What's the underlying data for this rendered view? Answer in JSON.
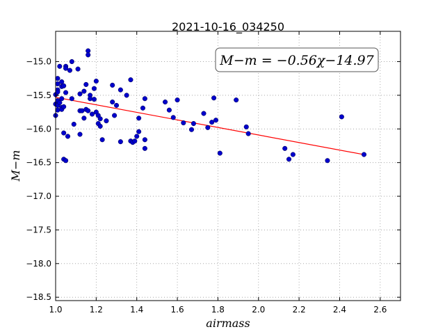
{
  "chart_data": {
    "type": "scatter",
    "title": "2021-10-16_034250",
    "xlabel": "airmass",
    "ylabel": "M−m",
    "xlim": [
      1.0,
      2.7
    ],
    "ylim": [
      -18.55,
      -14.55
    ],
    "x_ticks": [
      1.0,
      1.2,
      1.4,
      1.6,
      1.8,
      2.0,
      2.2,
      2.4,
      2.6
    ],
    "x_tick_labels": [
      "1.0",
      "1.2",
      "1.4",
      "1.6",
      "1.8",
      "2.0",
      "2.2",
      "2.4",
      "2.6"
    ],
    "y_ticks": [
      -15.0,
      -15.5,
      -16.0,
      -16.5,
      -17.0,
      -17.5,
      -18.0,
      -18.5
    ],
    "y_tick_labels": [
      "−15.0",
      "−15.5",
      "−16.0",
      "−16.5",
      "−17.0",
      "−17.5",
      "−18.0",
      "−18.5"
    ],
    "grid": true,
    "annotation": "M−m = −0.56χ−14.97",
    "marker_color": "#0000cc",
    "fit_color": "#ff0000",
    "fit_line": {
      "slope": -0.56,
      "intercept": -14.97,
      "x_range": [
        1.0,
        2.52
      ]
    },
    "points": [
      [
        1.0,
        -15.49
      ],
      [
        1.0,
        -15.63
      ],
      [
        1.0,
        -15.8
      ],
      [
        1.01,
        -15.25
      ],
      [
        1.01,
        -15.33
      ],
      [
        1.01,
        -15.42
      ],
      [
        1.01,
        -15.45
      ],
      [
        1.01,
        -15.58
      ],
      [
        1.01,
        -15.65
      ],
      [
        1.01,
        -15.72
      ],
      [
        1.02,
        -15.07
      ],
      [
        1.02,
        -15.61
      ],
      [
        1.03,
        -15.3
      ],
      [
        1.03,
        -15.37
      ],
      [
        1.03,
        -15.55
      ],
      [
        1.03,
        -15.68
      ],
      [
        1.03,
        -15.71
      ],
      [
        1.04,
        -15.36
      ],
      [
        1.04,
        -15.67
      ],
      [
        1.04,
        -16.06
      ],
      [
        1.04,
        -16.45
      ],
      [
        1.05,
        -15.07
      ],
      [
        1.05,
        -15.1
      ],
      [
        1.05,
        -15.46
      ],
      [
        1.05,
        -16.47
      ],
      [
        1.06,
        -16.11
      ],
      [
        1.07,
        -15.13
      ],
      [
        1.08,
        -15.0
      ],
      [
        1.08,
        -15.55
      ],
      [
        1.09,
        -15.93
      ],
      [
        1.11,
        -15.11
      ],
      [
        1.12,
        -15.73
      ],
      [
        1.12,
        -15.48
      ],
      [
        1.12,
        -16.08
      ],
      [
        1.13,
        -15.73
      ],
      [
        1.14,
        -15.44
      ],
      [
        1.14,
        -15.84
      ],
      [
        1.15,
        -15.71
      ],
      [
        1.15,
        -15.34
      ],
      [
        1.16,
        -14.84
      ],
      [
        1.16,
        -14.9
      ],
      [
        1.16,
        -15.73
      ],
      [
        1.17,
        -15.5
      ],
      [
        1.17,
        -15.55
      ],
      [
        1.18,
        -15.78
      ],
      [
        1.19,
        -15.4
      ],
      [
        1.19,
        -15.56
      ],
      [
        1.2,
        -15.75
      ],
      [
        1.2,
        -15.29
      ],
      [
        1.21,
        -15.92
      ],
      [
        1.21,
        -15.8
      ],
      [
        1.22,
        -15.85
      ],
      [
        1.22,
        -15.96
      ],
      [
        1.23,
        -16.16
      ],
      [
        1.25,
        -15.88
      ],
      [
        1.28,
        -15.35
      ],
      [
        1.28,
        -15.6
      ],
      [
        1.29,
        -15.8
      ],
      [
        1.3,
        -15.65
      ],
      [
        1.32,
        -15.42
      ],
      [
        1.32,
        -16.19
      ],
      [
        1.35,
        -15.5
      ],
      [
        1.37,
        -15.27
      ],
      [
        1.37,
        -16.18
      ],
      [
        1.38,
        -16.2
      ],
      [
        1.39,
        -16.18
      ],
      [
        1.4,
        -16.11
      ],
      [
        1.41,
        -15.84
      ],
      [
        1.41,
        -16.04
      ],
      [
        1.43,
        -15.69
      ],
      [
        1.44,
        -15.55
      ],
      [
        1.44,
        -16.16
      ],
      [
        1.44,
        -16.29
      ],
      [
        1.54,
        -15.6
      ],
      [
        1.56,
        -15.72
      ],
      [
        1.58,
        -15.83
      ],
      [
        1.6,
        -15.57
      ],
      [
        1.63,
        -15.91
      ],
      [
        1.67,
        -16.01
      ],
      [
        1.68,
        -15.92
      ],
      [
        1.73,
        -15.77
      ],
      [
        1.75,
        -15.98
      ],
      [
        1.77,
        -15.9
      ],
      [
        1.78,
        -15.54
      ],
      [
        1.79,
        -15.87
      ],
      [
        1.81,
        -16.36
      ],
      [
        1.89,
        -15.57
      ],
      [
        1.94,
        -15.97
      ],
      [
        1.95,
        -16.07
      ],
      [
        2.13,
        -16.29
      ],
      [
        2.15,
        -16.45
      ],
      [
        2.17,
        -16.38
      ],
      [
        2.34,
        -16.47
      ],
      [
        2.41,
        -15.82
      ],
      [
        2.52,
        -16.38
      ]
    ]
  }
}
